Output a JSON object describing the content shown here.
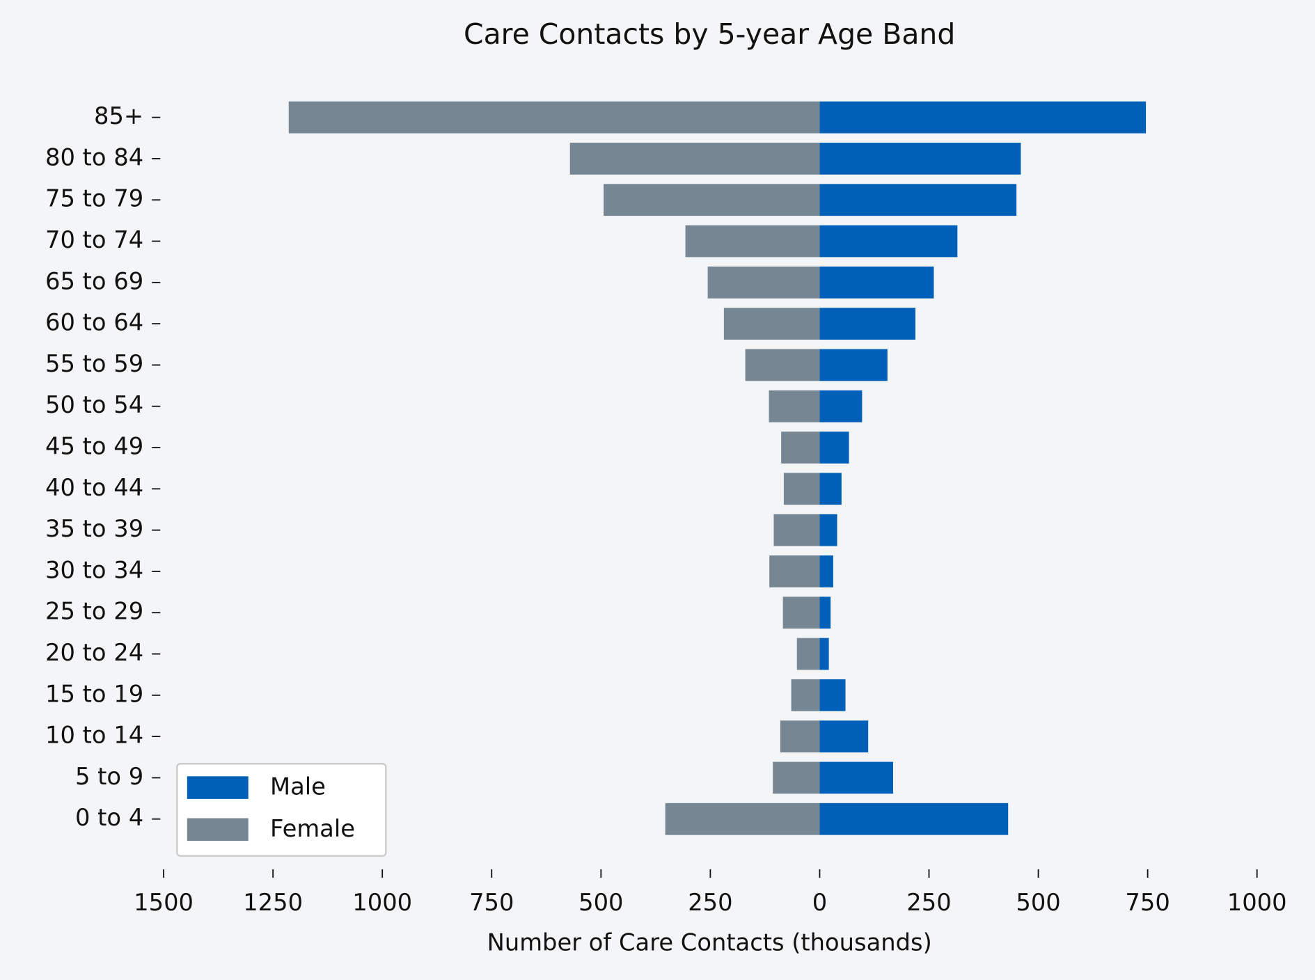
{
  "chart_data": {
    "type": "pyramid",
    "title": "Care Contacts by 5-year Age Band",
    "x_label": "Number of Care Contacts (thousands)",
    "categories": [
      "0 to 4",
      "5 to 9",
      "10 to 14",
      "15 to 19",
      "20 to 24",
      "25 to 29",
      "30 to 34",
      "35 to 39",
      "40 to 44",
      "45 to 49",
      "50 to 54",
      "55 to 59",
      "60 to 64",
      "65 to 69",
      "70 to 74",
      "75 to 79",
      "80 to 84",
      "85+"
    ],
    "series": [
      {
        "name": "Male",
        "color": "#0060b8",
        "values": [
          431,
          168,
          111,
          59,
          21,
          25,
          31,
          40,
          50,
          67,
          97,
          155,
          219,
          261,
          315,
          450,
          460,
          746
        ]
      },
      {
        "name": "Female",
        "color": "#768693",
        "values": [
          -353,
          -107,
          -90,
          -65,
          -52,
          -84,
          -115,
          -105,
          -82,
          -88,
          -116,
          -170,
          -219,
          -256,
          -307,
          -494,
          -571,
          -1214
        ]
      }
    ],
    "xlim": [
      -1500,
      1000
    ],
    "xticks": [
      {
        "value": -1500,
        "label": "1500"
      },
      {
        "value": -1250,
        "label": "1250"
      },
      {
        "value": -1000,
        "label": "1000"
      },
      {
        "value": -750,
        "label": "750"
      },
      {
        "value": -500,
        "label": "500"
      },
      {
        "value": -250,
        "label": "250"
      },
      0,
      250,
      500,
      750,
      1000
    ],
    "legend": "lower left"
  }
}
